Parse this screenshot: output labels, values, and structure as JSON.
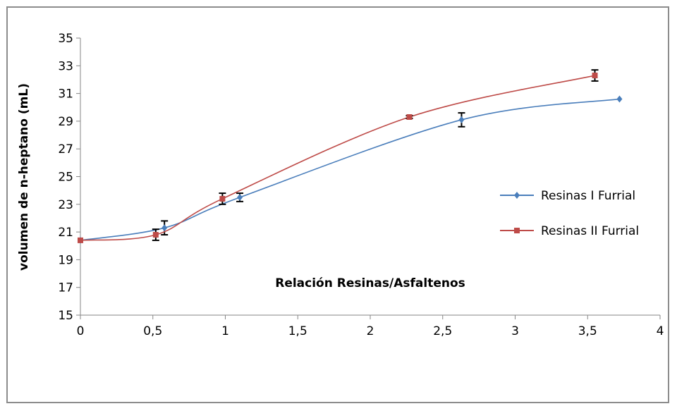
{
  "chart_data": {
    "type": "line",
    "title": "",
    "xlabel": "Relación Resinas/Asfaltenos",
    "ylabel": "volumen de n-heptano (mL)",
    "xlim": [
      0,
      4
    ],
    "ylim": [
      15,
      35
    ],
    "x_ticks": [
      0,
      0.5,
      1,
      1.5,
      2,
      2.5,
      3,
      3.5,
      4
    ],
    "x_tick_labels": [
      "0",
      "0,5",
      "1",
      "1,5",
      "2",
      "2,5",
      "3",
      "3,5",
      "4"
    ],
    "y_ticks": [
      15,
      17,
      19,
      21,
      23,
      25,
      27,
      29,
      31,
      33,
      35
    ],
    "y_tick_labels": [
      "15",
      "17",
      "19",
      "21",
      "23",
      "25",
      "27",
      "29",
      "31",
      "33",
      "35"
    ],
    "grid": false,
    "legend_position": "right",
    "series": [
      {
        "name": "Resinas I Furrial",
        "color": "#4a7ebb",
        "marker": "diamond",
        "x": [
          0,
          0.58,
          1.1,
          2.63,
          3.72
        ],
        "y": [
          20.4,
          21.3,
          23.5,
          29.1,
          30.6
        ],
        "error": [
          0,
          0.5,
          0.3,
          0.5,
          0
        ]
      },
      {
        "name": "Resinas II Furrial",
        "color": "#be4b48",
        "marker": "square",
        "x": [
          0,
          0.52,
          0.98,
          2.27,
          3.55
        ],
        "y": [
          20.4,
          20.8,
          23.4,
          29.3,
          32.3
        ],
        "error": [
          0,
          0.4,
          0.4,
          0.1,
          0.4
        ]
      }
    ]
  }
}
